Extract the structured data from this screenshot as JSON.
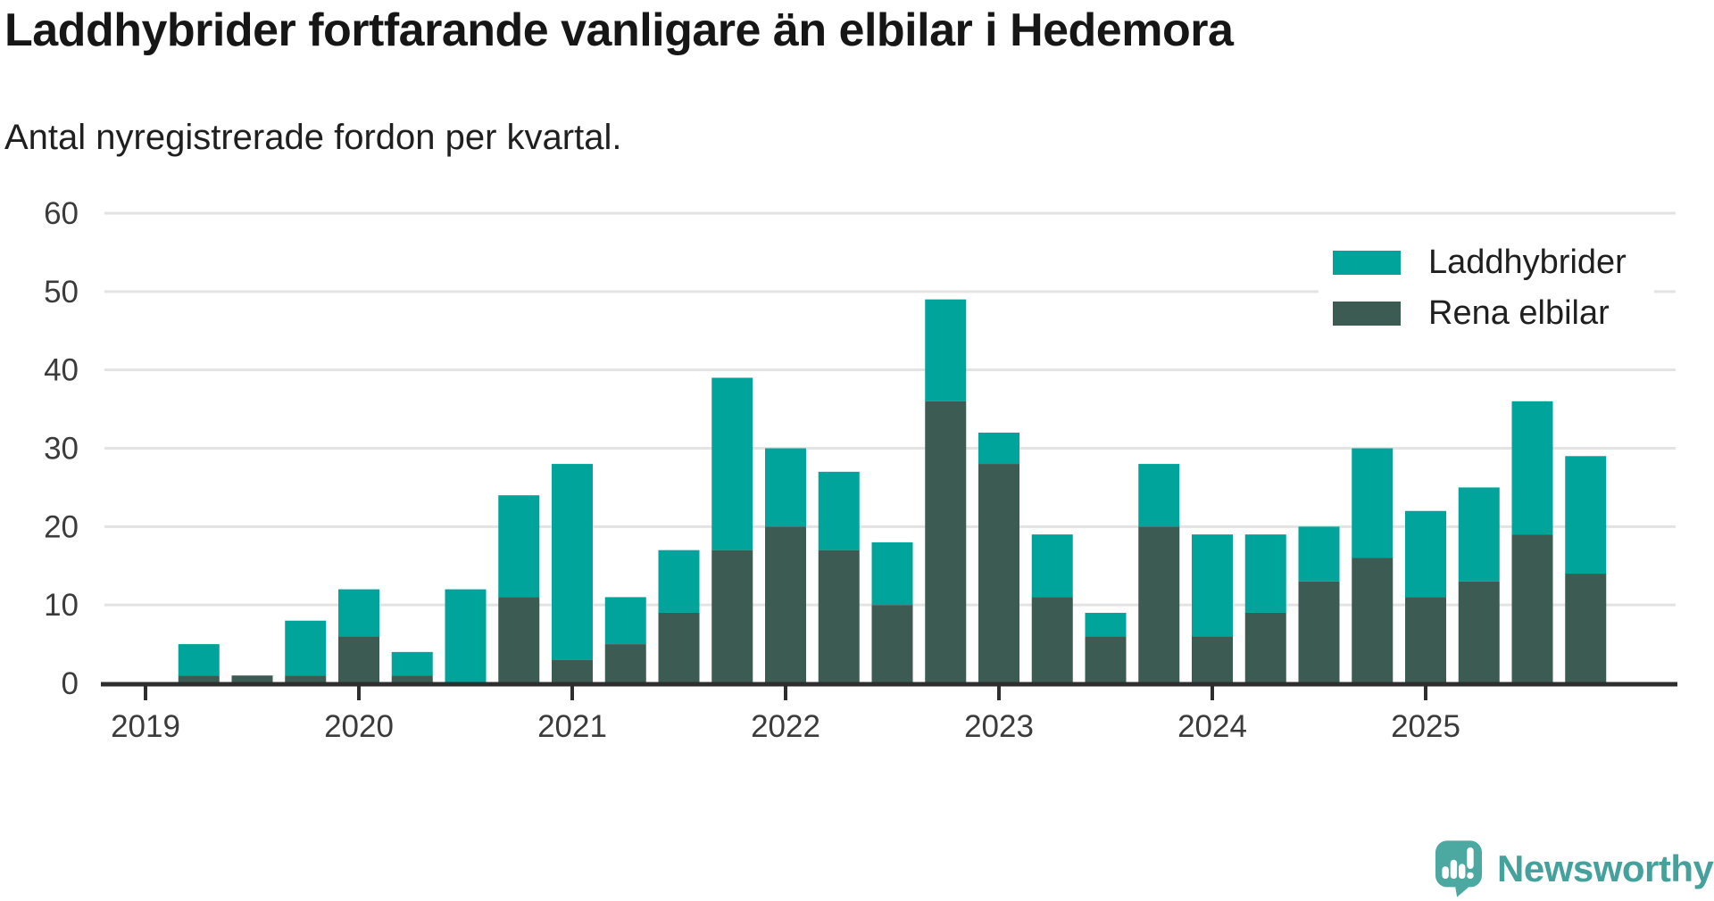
{
  "header": {
    "title": "Laddhybrider fortfarande vanligare än elbilar i Hedemora",
    "subtitle": "Antal nyregistrerade fordon per kvartal."
  },
  "chart_data": {
    "type": "bar",
    "stacked": true,
    "title": "Laddhybrider fortfarande vanligare än elbilar i Hedemora",
    "subtitle": "Antal nyregistrerade fordon per kvartal.",
    "categories": [
      "2019 Q1",
      "2019 Q2",
      "2019 Q3",
      "2019 Q4",
      "2020 Q1",
      "2020 Q2",
      "2020 Q3",
      "2020 Q4",
      "2021 Q1",
      "2021 Q2",
      "2021 Q3",
      "2021 Q4",
      "2022 Q1",
      "2022 Q2",
      "2022 Q3",
      "2022 Q4",
      "2023 Q1",
      "2023 Q2",
      "2023 Q3",
      "2023 Q4",
      "2024 Q1",
      "2024 Q2",
      "2024 Q3",
      "2024 Q4",
      "2025 Q1",
      "2025 Q2",
      "2025 Q3",
      "2025 Q4"
    ],
    "series": [
      {
        "name": "Laddhybrider",
        "color": "#00a49a",
        "values": [
          0,
          4,
          0,
          7,
          6,
          3,
          12,
          13,
          25,
          6,
          8,
          22,
          10,
          10,
          8,
          13,
          4,
          8,
          3,
          8,
          13,
          10,
          7,
          14,
          11,
          12,
          17,
          15
        ]
      },
      {
        "name": "Rena elbilar",
        "color": "#3c5b53",
        "values": [
          0,
          1,
          1,
          1,
          6,
          1,
          0,
          11,
          3,
          5,
          9,
          17,
          20,
          17,
          10,
          36,
          28,
          11,
          6,
          20,
          6,
          9,
          13,
          16,
          11,
          13,
          19,
          14
        ]
      }
    ],
    "stack_order_bottom_to_top": [
      "Rena elbilar",
      "Laddhybrider"
    ],
    "totals": [
      0,
      5,
      1,
      8,
      12,
      4,
      12,
      24,
      28,
      11,
      17,
      39,
      30,
      27,
      18,
      49,
      32,
      19,
      9,
      28,
      19,
      19,
      20,
      30,
      22,
      25,
      36,
      29
    ],
    "xlabel": "",
    "ylabel": "",
    "ylim": [
      0,
      60
    ],
    "yticks": [
      0,
      10,
      20,
      30,
      40,
      50,
      60
    ],
    "year_ticks": [
      "2019",
      "2020",
      "2021",
      "2022",
      "2023",
      "2024",
      "2025"
    ],
    "grid": "horizontal",
    "legend_position": "top-right"
  },
  "legend": {
    "items": [
      {
        "label": "Laddhybrider",
        "color": "#00a49a"
      },
      {
        "label": "Rena elbilar",
        "color": "#3c5b53"
      }
    ]
  },
  "brand": {
    "name": "Newsworthy",
    "logo_icon": "speech-bubble-bar-chart-exclamation",
    "bubble_color": "#4ca9a1",
    "text_color": "#45a19b"
  },
  "colors": {
    "gridline": "#e3e3e3",
    "axis": "#2e2e2e",
    "axis_label": "#3b3b3b",
    "background": "#ffffff"
  }
}
